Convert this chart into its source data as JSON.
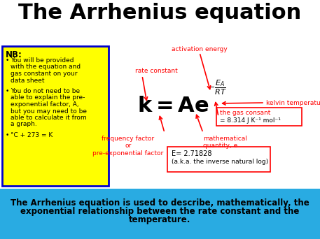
{
  "title": "The Arrhenius equation",
  "title_fontsize": 22,
  "title_fontweight": "bold",
  "bg_color": "#ffffff",
  "yellow_box": {
    "text_nb": "NB:",
    "bullets": [
      "You will be provided\nwith the equation and\ngas constant on your\ndata sheet",
      "You do not need to be\nable to explain the pre-\nexponential factor, A,\nbut you may need to be\nable to calculate it from\na graph.",
      "°C + 273 = K"
    ],
    "bg": "#ffff00",
    "border": "#0000cd",
    "fontsize": 6.5
  },
  "red_color": "#ff0000",
  "annotation_fontsize": 6.5,
  "annotations": {
    "activation_energy": "activation energy",
    "rate_constant": "rate constant",
    "kelvin_temperature": "kelvin temperature",
    "gas_constant_label": "the gas consant",
    "gas_constant_value": "= 8.314 J K⁻¹ mol⁻¹",
    "freq_factor": "frequency factor\nor\npre-exponential factor",
    "math_e_label": "mathematical\nquantity, e",
    "e_box_line1": "E= 2.71828",
    "e_box_line2": "(a.k.a. the inverse natural log)"
  },
  "bottom_box": {
    "bg": "#29abe2",
    "text_line1": "The Arrhenius equation is used to describe, mathematically, the",
    "text_line2": "exponential relationship between the rate constant and the",
    "text_line3": "temperature.",
    "fontsize": 8.5,
    "fontweight": "bold",
    "text_color": "#000000"
  }
}
